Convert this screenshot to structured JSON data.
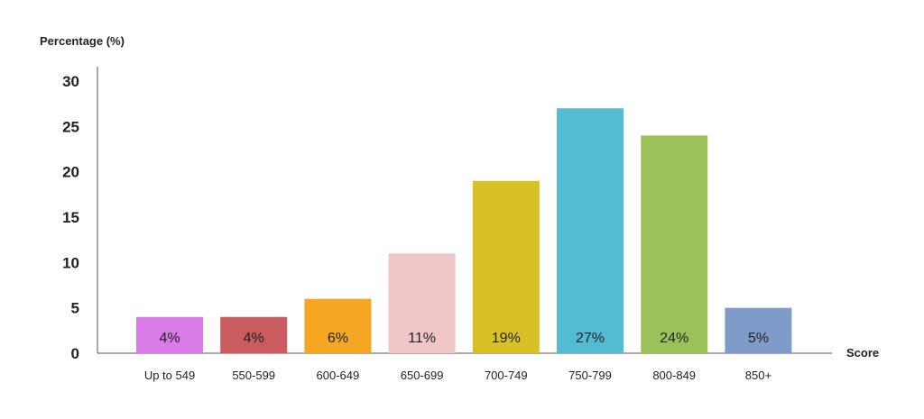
{
  "chart_data": {
    "type": "bar",
    "title": "",
    "ylabel": "Percentage (%)",
    "xlabel": "Score",
    "ylim": [
      0,
      30
    ],
    "yticks": [
      0,
      5,
      10,
      15,
      20,
      25,
      30
    ],
    "grid": false,
    "legend": "none",
    "categories": [
      "Up to 549",
      "550-599",
      "600-649",
      "650-699",
      "700-749",
      "750-799",
      "800-849",
      "850+"
    ],
    "values": [
      4,
      4,
      6,
      11,
      19,
      27,
      24,
      5
    ],
    "data_labels": [
      "4%",
      "4%",
      "6%",
      "11%",
      "19%",
      "27%",
      "24%",
      "5%"
    ],
    "colors": [
      "#d97ce8",
      "#c95c5e",
      "#f5a623",
      "#f0c6c6",
      "#d8c127",
      "#54bcd2",
      "#9bc258",
      "#7f9bc9"
    ]
  }
}
